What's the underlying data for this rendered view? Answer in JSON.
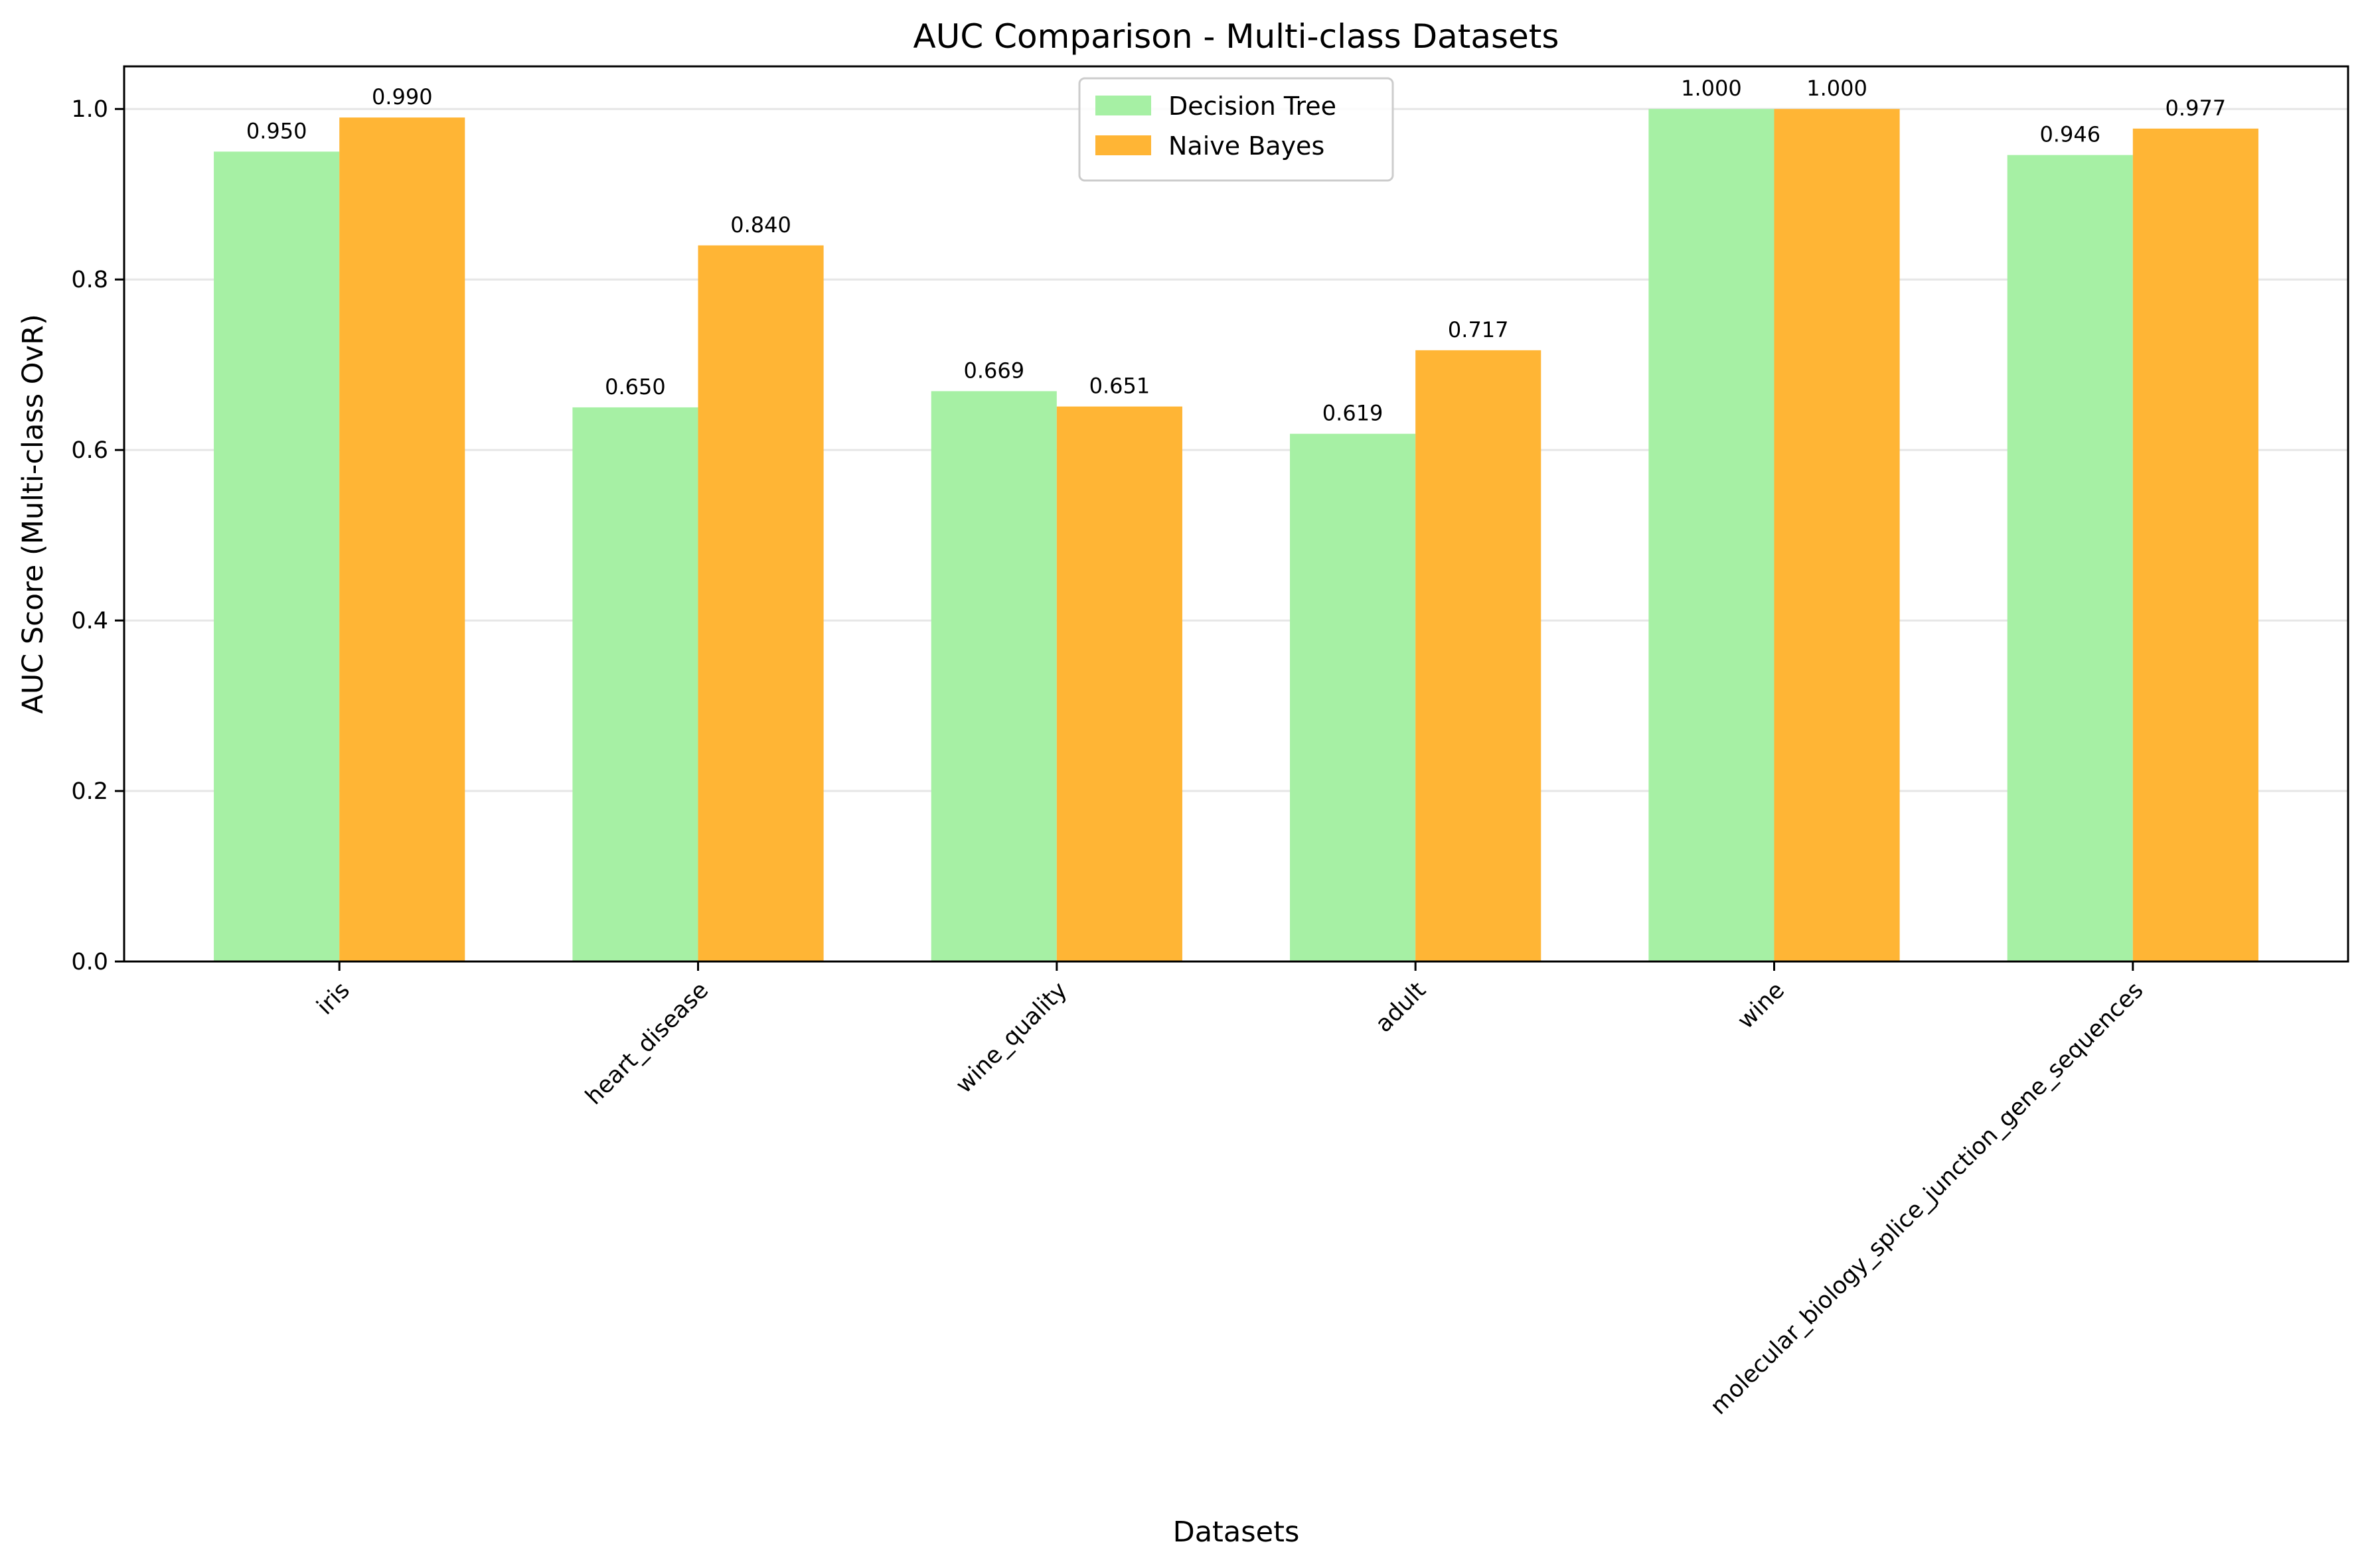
{
  "chart_data": {
    "type": "bar",
    "title": "AUC Comparison - Multi-class Datasets",
    "xlabel": "Datasets",
    "ylabel": "AUC Score (Multi-class OvR)",
    "ylim": [
      0,
      1.05
    ],
    "yticks": [
      0.0,
      0.2,
      0.4,
      0.6,
      0.8,
      1.0
    ],
    "ytick_labels": [
      "0.0",
      "0.2",
      "0.4",
      "0.6",
      "0.8",
      "1.0"
    ],
    "grid": "y",
    "legend_position": "top-center",
    "categories": [
      "iris",
      "heart_disease",
      "wine_quality",
      "adult",
      "wine",
      "molecular_biology_splice_junction_gene_sequences"
    ],
    "series": [
      {
        "name": "Decision Tree",
        "color": "#a6f0a4",
        "values": [
          0.95,
          0.65,
          0.669,
          0.619,
          1.0,
          0.946
        ],
        "labels": [
          "0.950",
          "0.650",
          "0.669",
          "0.619",
          "1.000",
          "0.946"
        ]
      },
      {
        "name": "Naive Bayes",
        "color": "#ffb535",
        "values": [
          0.99,
          0.84,
          0.651,
          0.717,
          1.0,
          0.977
        ],
        "labels": [
          "0.990",
          "0.840",
          "0.651",
          "0.717",
          "1.000",
          "0.977"
        ]
      }
    ]
  }
}
